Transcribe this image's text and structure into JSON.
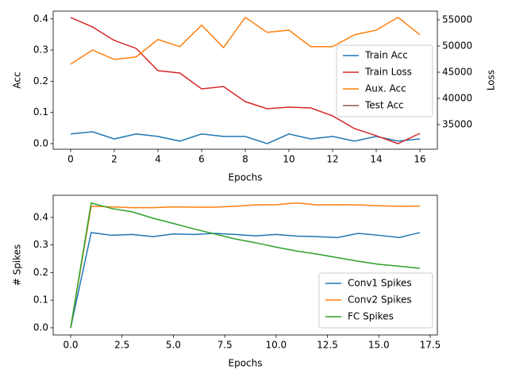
{
  "chart_data": [
    {
      "type": "line",
      "xlabel": "Epochs",
      "ylabel": "Acc",
      "y2label": "Loss",
      "x": [
        0,
        1,
        2,
        3,
        4,
        5,
        6,
        7,
        8,
        9,
        10,
        11,
        12,
        13,
        14,
        15,
        16
      ],
      "xlim": [
        -0.8,
        16.8
      ],
      "xticks": [
        0,
        2,
        4,
        6,
        8,
        10,
        12,
        14,
        16
      ],
      "ylim": [
        -0.018,
        0.425
      ],
      "yticks": [
        {
          "value": 0,
          "label": "0.0"
        },
        0.1,
        0.2,
        0.3,
        0.4
      ],
      "y2lim": [
        30300,
        56667
      ],
      "y2ticks": [
        35000,
        40000,
        45000,
        50000,
        55000
      ],
      "legend": "right",
      "series": [
        {
          "name": "Train Acc",
          "color": "#1f77b4",
          "values": [
            0.031,
            0.038,
            0.015,
            0.031,
            0.023,
            0.008,
            0.031,
            0.023,
            0.023,
            0,
            0.031,
            0.015,
            0.023,
            0.008,
            0.023,
            0.008,
            0.015
          ]
        },
        {
          "name": "Train Loss",
          "color": "#d62728",
          "axis": "y2",
          "values": [
            55450,
            53640,
            51060,
            49550,
            45300,
            44850,
            41820,
            42270,
            39390,
            38030,
            38330,
            38180,
            36670,
            34240,
            32880,
            31360,
            33330
          ]
        },
        {
          "name": "Aux. Acc",
          "color": "#ff7f0e",
          "values": [
            0.255,
            0.3,
            0.27,
            0.278,
            0.334,
            0.311,
            0.38,
            0.308,
            0.405,
            0.357,
            0.364,
            0.311,
            0.311,
            0.349,
            0.364,
            0.405,
            0.349
          ]
        },
        {
          "name": "Test Acc",
          "color": "#8c564b",
          "values": [
            null,
            null,
            null,
            null,
            null,
            null,
            null,
            null,
            null,
            null,
            null,
            null,
            null,
            null,
            null,
            null,
            null
          ]
        }
      ]
    },
    {
      "type": "line",
      "xlabel": "Epochs",
      "ylabel": "# Spikes",
      "x": [
        0,
        1,
        2,
        3,
        4,
        5,
        6,
        7,
        8,
        9,
        10,
        11,
        12,
        13,
        14,
        15,
        16,
        17
      ],
      "xlim": [
        -0.85,
        17.85
      ],
      "xticks": [
        {
          "value": 0,
          "label": "0.0"
        },
        2.5,
        {
          "value": 5,
          "label": "5.0"
        },
        7.5,
        {
          "value": 10,
          "label": "10.0"
        },
        12.5,
        {
          "value": 15,
          "label": "15.0"
        },
        17.5
      ],
      "ylim": [
        -0.026,
        0.48
      ],
      "yticks": [
        {
          "value": 0,
          "label": "0.0"
        },
        0.1,
        0.2,
        0.3,
        0.4
      ],
      "legend": "lower right",
      "series": [
        {
          "name": "Conv1 Spikes",
          "color": "#1f77b4",
          "values": [
            0,
            0.345,
            0.335,
            0.338,
            0.33,
            0.34,
            0.338,
            0.342,
            0.338,
            0.333,
            0.338,
            0.332,
            0.33,
            0.327,
            0.342,
            0.335,
            0.327,
            0.345
          ]
        },
        {
          "name": "Conv2 Spikes",
          "color": "#ff7f0e",
          "values": [
            0,
            0.44,
            0.438,
            0.435,
            0.435,
            0.438,
            0.437,
            0.437,
            0.44,
            0.445,
            0.446,
            0.452,
            0.445,
            0.446,
            0.445,
            0.442,
            0.44,
            0.441
          ]
        },
        {
          "name": "FC Spikes",
          "color": "#2ca02c",
          "values": [
            0,
            0.452,
            0.432,
            0.42,
            0.397,
            0.378,
            0.358,
            0.34,
            0.322,
            0.308,
            0.292,
            0.278,
            0.267,
            0.254,
            0.241,
            0.23,
            0.223,
            0.215
          ]
        }
      ]
    }
  ]
}
